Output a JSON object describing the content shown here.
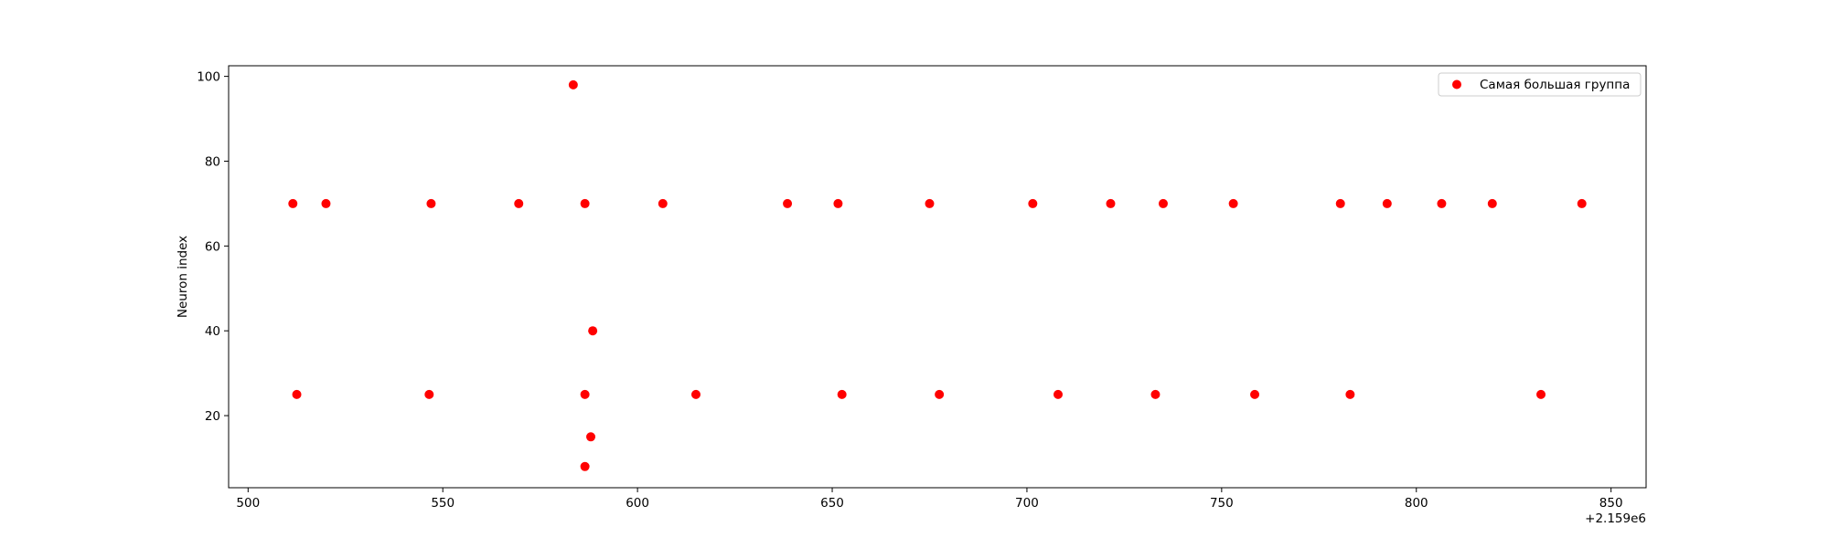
{
  "chart_data": {
    "type": "scatter",
    "title": "",
    "xlabel": "",
    "ylabel": "Neuron index",
    "x_offset_label": "+2.159e6",
    "xlim": [
      495,
      859
    ],
    "ylim": [
      3,
      102.5
    ],
    "xticks": [
      500,
      550,
      600,
      650,
      700,
      750,
      800,
      850
    ],
    "yticks": [
      20,
      40,
      60,
      80,
      100
    ],
    "grid": false,
    "legend_position": "top-right",
    "colors": {
      "marker": "#ff0000",
      "axes": "#000000",
      "legend_border": "#cccccc"
    },
    "series": [
      {
        "name": "Самая большая группа",
        "points": [
          [
            511.5,
            70
          ],
          [
            520,
            70
          ],
          [
            547,
            70
          ],
          [
            569.5,
            70
          ],
          [
            586.5,
            70
          ],
          [
            606.5,
            70
          ],
          [
            638.5,
            70
          ],
          [
            651.5,
            70
          ],
          [
            675,
            70
          ],
          [
            701.5,
            70
          ],
          [
            721.5,
            70
          ],
          [
            735,
            70
          ],
          [
            753,
            70
          ],
          [
            780.5,
            70
          ],
          [
            792.5,
            70
          ],
          [
            806.5,
            70
          ],
          [
            819.5,
            70
          ],
          [
            842.5,
            70
          ],
          [
            512.5,
            25
          ],
          [
            546.5,
            25
          ],
          [
            586.5,
            25
          ],
          [
            615,
            25
          ],
          [
            652.5,
            25
          ],
          [
            677.5,
            25
          ],
          [
            708,
            25
          ],
          [
            733,
            25
          ],
          [
            758.5,
            25
          ],
          [
            783,
            25
          ],
          [
            832,
            25
          ],
          [
            583.5,
            98
          ],
          [
            588.5,
            40
          ],
          [
            588,
            15
          ],
          [
            586.5,
            8
          ]
        ]
      }
    ]
  }
}
